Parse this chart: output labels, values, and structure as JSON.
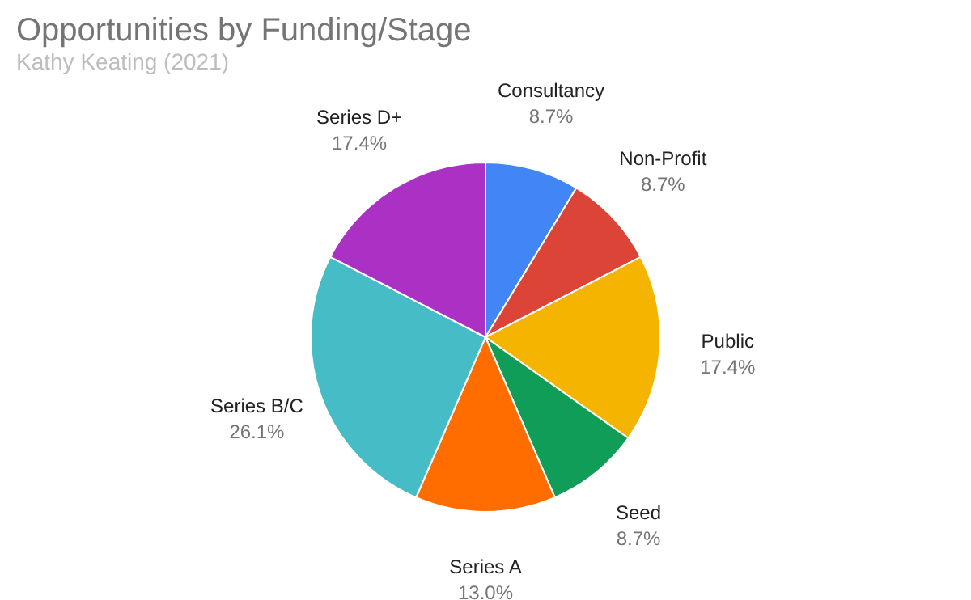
{
  "chart_data": {
    "type": "pie",
    "title": "Opportunities by Funding/Stage",
    "subtitle": "Kathy Keating (2021)",
    "categories": [
      "Consultancy",
      "Non-Profit",
      "Public",
      "Seed",
      "Series A",
      "Series B/C",
      "Series D+"
    ],
    "values": [
      8.7,
      8.7,
      17.4,
      8.7,
      13.0,
      26.1,
      17.4
    ],
    "value_labels": [
      "8.7%",
      "8.7%",
      "17.4%",
      "8.7%",
      "13.0%",
      "26.1%",
      "17.4%"
    ],
    "colors": [
      "#4285f4",
      "#db4437",
      "#f4b400",
      "#0f9d58",
      "#ff6d01",
      "#46bdc6",
      "#ab30c4"
    ],
    "legend": false
  }
}
